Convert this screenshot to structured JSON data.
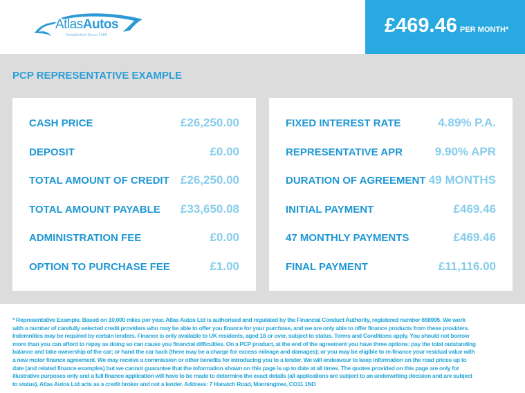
{
  "brand": {
    "name_part1": "Atlas",
    "name_part2": "Autos",
    "tagline": "Established Since 1989",
    "color": "#2d9ad6"
  },
  "price_box": {
    "amount": "£469.46",
    "suffix": "PER MONTH*",
    "color": "#29a9e1"
  },
  "section_title": "PCP REPRESENTATIVE EXAMPLE",
  "left_panel": [
    {
      "label": "CASH PRICE",
      "value": "£26,250.00"
    },
    {
      "label": "DEPOSIT",
      "value": "£0.00"
    },
    {
      "label": "TOTAL AMOUNT OF CREDIT",
      "value": "£26,250.00"
    },
    {
      "label": "TOTAL AMOUNT PAYABLE",
      "value": "£33,650.08"
    },
    {
      "label": "ADMINISTRATION FEE",
      "value": "£0.00"
    },
    {
      "label": "OPTION TO PURCHASE FEE",
      "value": "£1.00"
    }
  ],
  "right_panel": [
    {
      "label": "FIXED INTEREST RATE",
      "value": "4.89% P.A."
    },
    {
      "label": "REPRESENTATIVE APR",
      "value": "9.90% APR"
    },
    {
      "label": "DURATION OF AGREEMENT",
      "value": "49 MONTHS"
    },
    {
      "label": "INITIAL PAYMENT",
      "value": "£469.46"
    },
    {
      "label": "47 MONTHLY PAYMENTS",
      "value": "£469.46"
    },
    {
      "label": "FINAL PAYMENT",
      "value": "£11,116.00"
    }
  ],
  "disclaimer": "* Representative Example. Based on 10,000 miles per year. Atlas Autos Ltd is authorised and regulated by the Financial Conduct Authority, registered number 658995. We work with a number of carefully selected credit providers who may be able to offer you finance for your purchase, and we are only able to offer finance products from these providers. Indemnities may be required by certain lenders. Finance is only available to UK residents, aged 18 or over, subject to status. Terms and Conditions apply. You should not borrow more than you can afford to repay as doing so can cause you financial difficulties. On a PCP product, at the end of the agreement you have three options: pay the total outstanding balance and take ownership of the car; or hand the car back (there may be a charge for excess mileage and damages); or you may be eligible to re-finance your residual value with a new motor finance agreement. We may receive a commission or other benefits for introducing you to a lender. We will endeavour to keep information on the road prices up to date (and related finance examples) but we cannot guarantee that the information shown on this page is up to date at all times. The quotes provided on this page are only for illustrative purposes only and a full finance application will have to be made to determine the exact details (all applications are subject to an underwriting decision and are subject to status). Atlas Autos Ltd acts as a credit broker and not a lender. Address: 7 Harwich Road, Manningtree, CO11 1ND"
}
